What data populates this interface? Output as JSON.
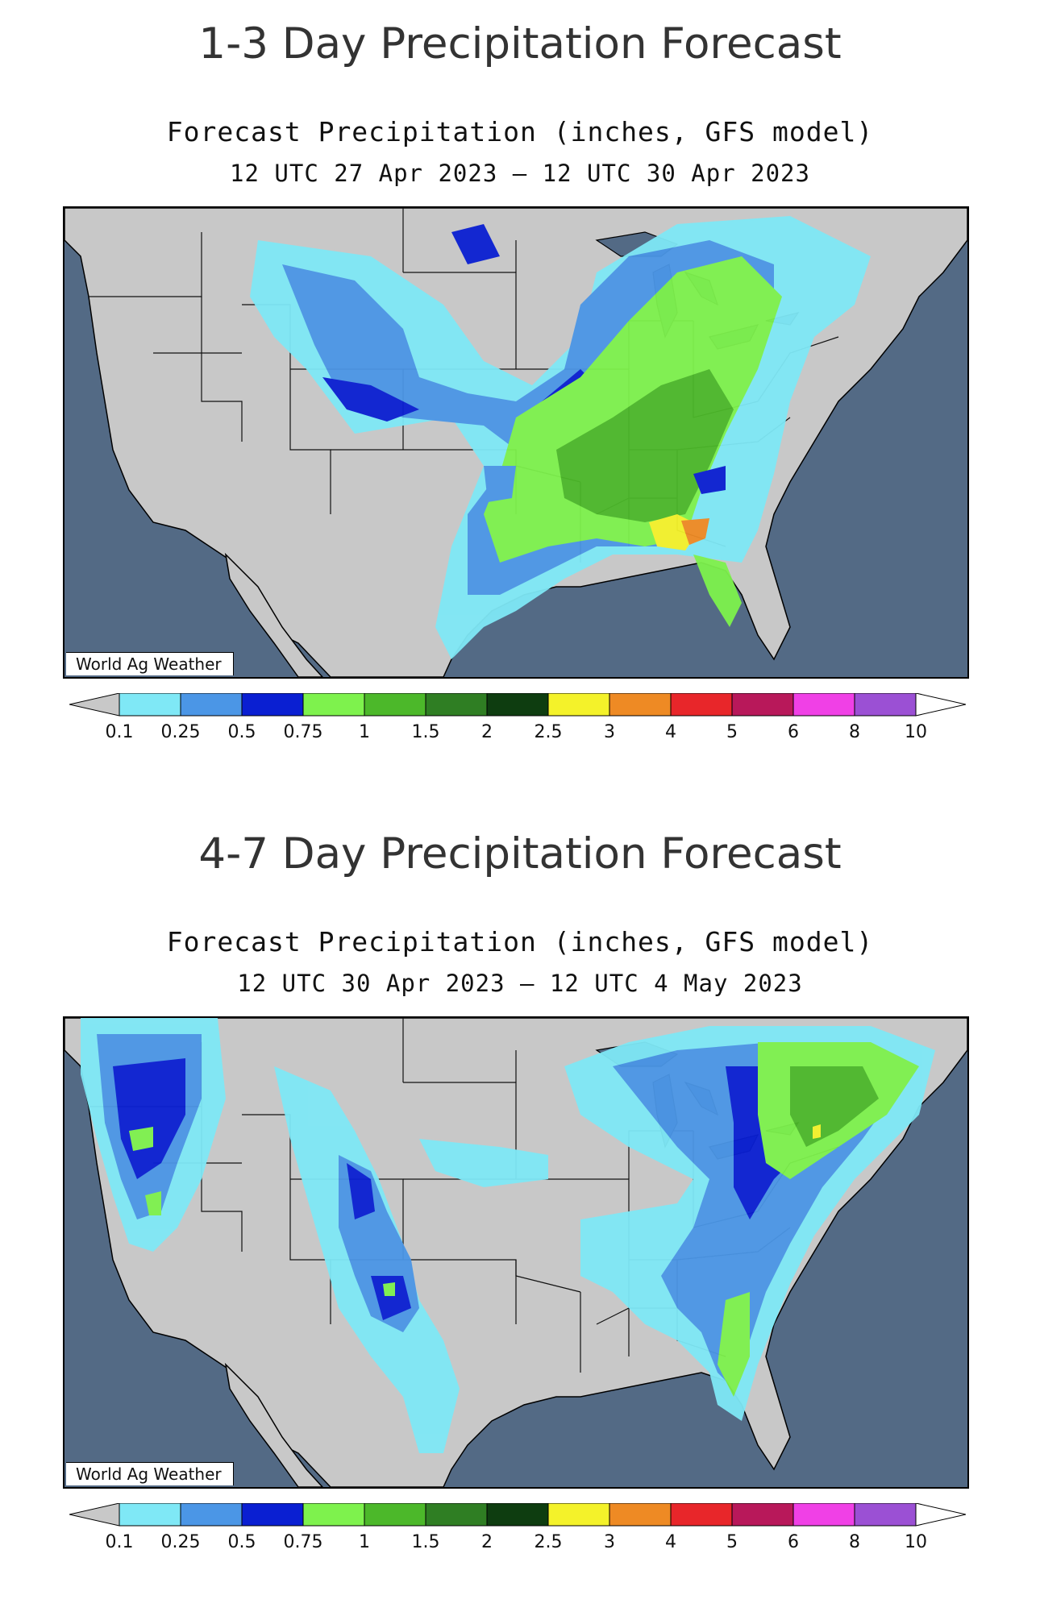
{
  "panels": [
    {
      "heading": "1-3 Day Precipitation Forecast",
      "map_title": "Forecast Precipitation (inches, GFS model)",
      "map_dates": "12 UTC 27 Apr 2023 – 12 UTC 30 Apr 2023",
      "credit": "World Ag Weather"
    },
    {
      "heading": "4-7 Day Precipitation Forecast",
      "map_title": "Forecast Precipitation (inches, GFS model)",
      "map_dates": "12 UTC 30 Apr 2023 – 12 UTC 4 May 2023",
      "credit": "World Ag Weather"
    }
  ],
  "legend": {
    "labels": [
      "0.1",
      "0.25",
      "0.5",
      "0.75",
      "1",
      "1.5",
      "2",
      "2.5",
      "3",
      "4",
      "5",
      "6",
      "8",
      "10"
    ],
    "colors": [
      "#c8c8c8",
      "#7fe8f6",
      "#4b96e6",
      "#0a1fd2",
      "#7ef24d",
      "#4cb82a",
      "#2f7e23",
      "#0e3d10",
      "#f4f22a",
      "#ee8a24",
      "#e8262a",
      "#b8185a",
      "#f040e6",
      "#9b50d4",
      "#ffffff"
    ]
  },
  "map_colors": {
    "ocean": "#536a85",
    "land": "#c8c8c8",
    "lakes": "#536a85"
  }
}
